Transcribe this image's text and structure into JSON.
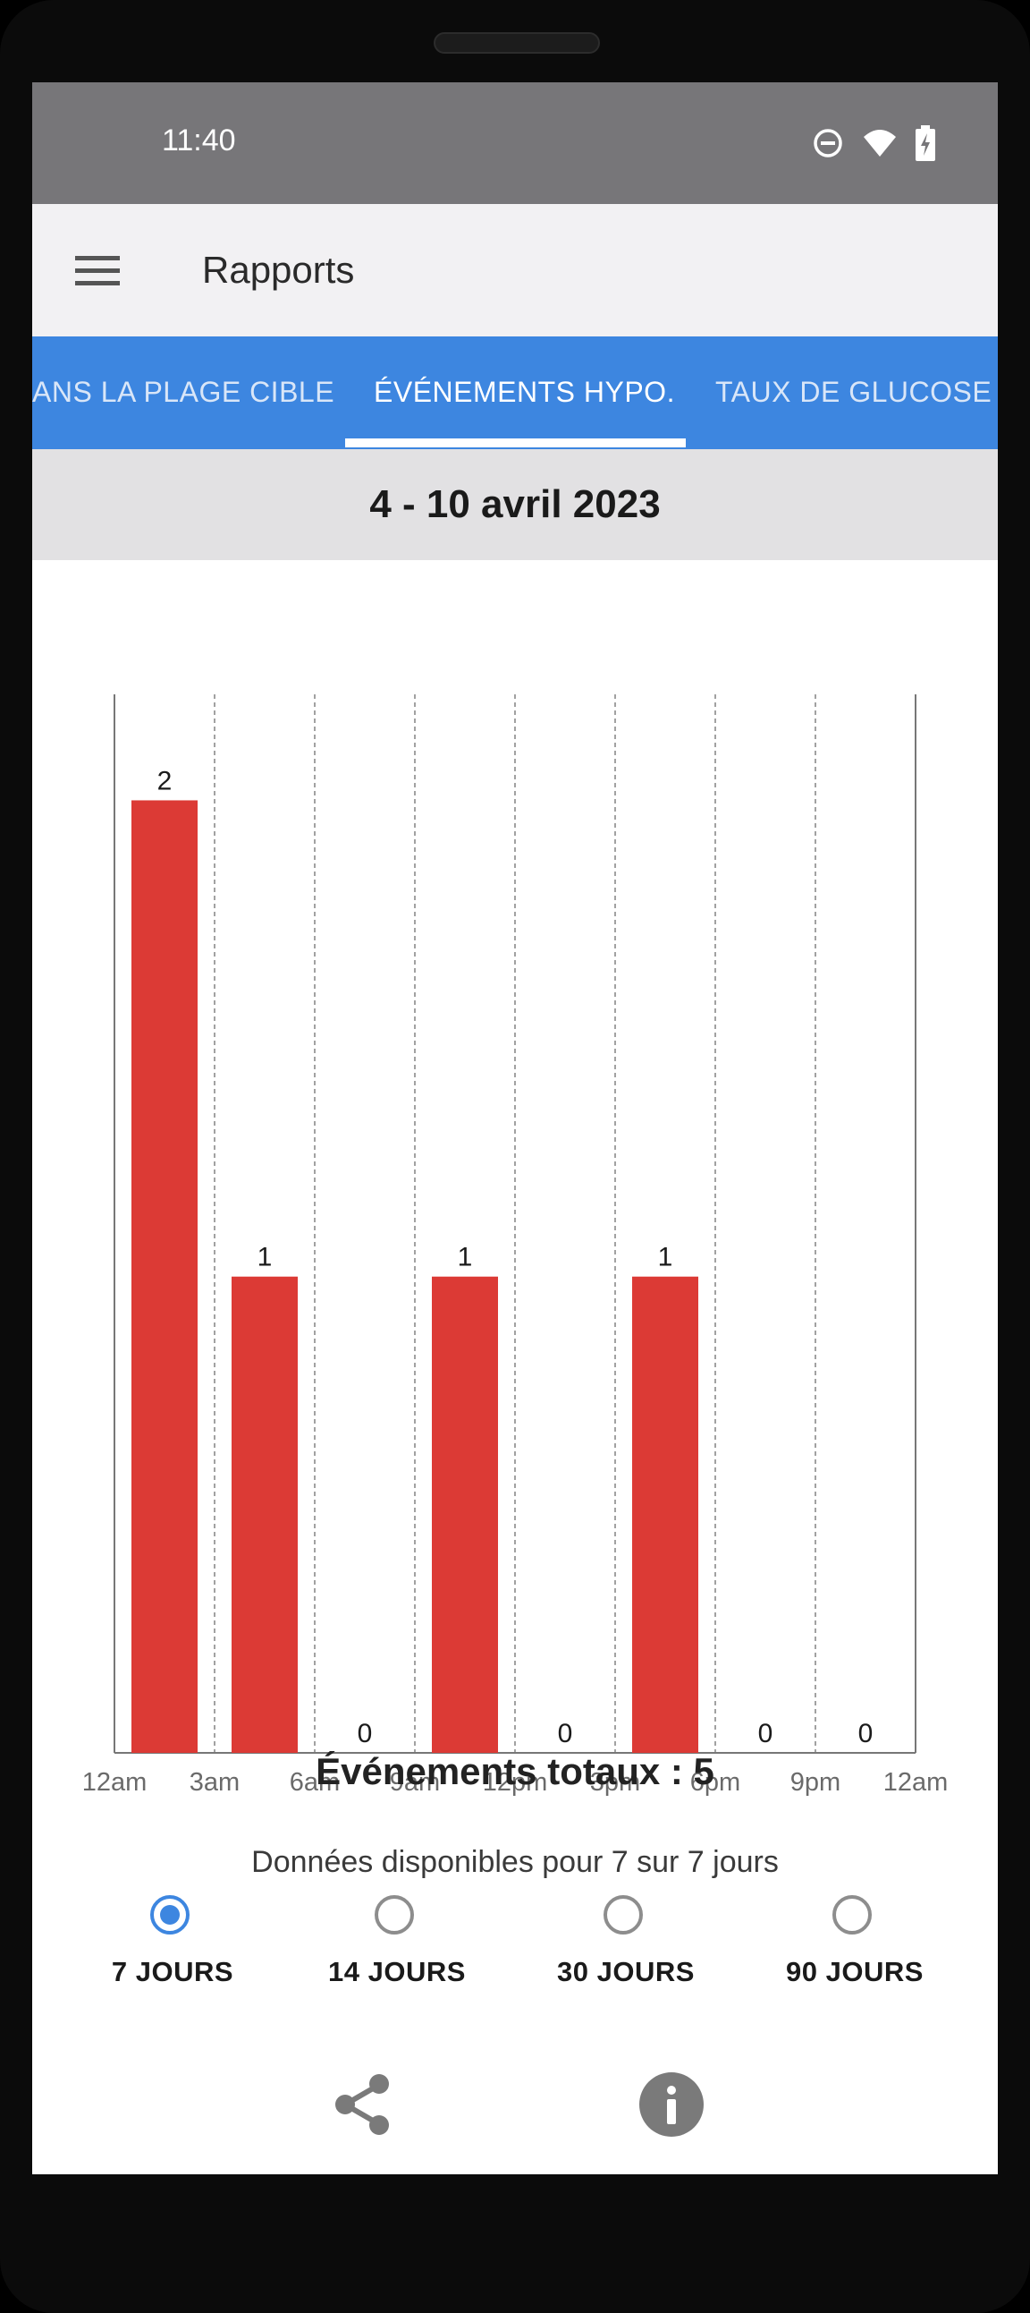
{
  "status_bar": {
    "time": "11:40",
    "icons": [
      "do-not-disturb-icon",
      "wifi-icon",
      "battery-charging-icon"
    ]
  },
  "app_bar": {
    "menu_icon": "hamburger-menu-icon",
    "title": "Rapports"
  },
  "tabs": [
    {
      "label": "ANS LA PLAGE CIBLE",
      "active": false
    },
    {
      "label": "ÉVÉNEMENTS HYPO.",
      "active": true
    },
    {
      "label": "TAUX DE GLUCOSE M",
      "active": false
    }
  ],
  "date_range": "4 - 10 avril 2023",
  "chart_data": {
    "type": "bar",
    "categories": [
      "12am-3am",
      "3am-6am",
      "6am-9am",
      "9am-12pm",
      "12pm-3pm",
      "3pm-6pm",
      "6pm-9pm",
      "9pm-12am"
    ],
    "values": [
      2,
      1,
      0,
      1,
      0,
      1,
      0,
      0
    ],
    "data_labels": [
      "2",
      "1",
      "0",
      "1",
      "0",
      "1",
      "0",
      "0"
    ],
    "x_tick_labels": [
      "12am",
      "3am",
      "6am",
      "9am",
      "12pm",
      "3pm",
      "6pm",
      "9pm",
      "12am"
    ],
    "title": "",
    "xlabel": "",
    "ylabel": "",
    "ylim": [
      0,
      2.2
    ],
    "grid": "vertical dashed",
    "bar_color": "#dc3a35"
  },
  "total_events": "Événements totaux : 5",
  "data_available": "Données disponibles pour 7 sur 7 jours",
  "period_options": [
    {
      "label": "7 JOURS",
      "selected": true
    },
    {
      "label": "14 JOURS",
      "selected": false
    },
    {
      "label": "30 JOURS",
      "selected": false
    },
    {
      "label": "90 JOURS",
      "selected": false
    }
  ],
  "actions": {
    "share_icon": "share-icon",
    "info_icon": "info-icon"
  },
  "colors": {
    "accent": "#3d86e0",
    "status_bar": "#777679",
    "bar": "#dc3a35"
  }
}
